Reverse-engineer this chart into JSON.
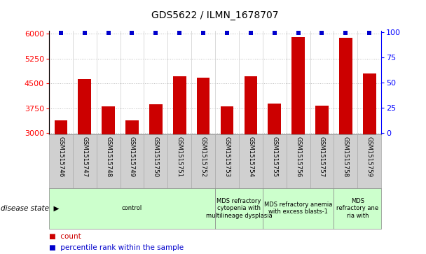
{
  "title": "GDS5622 / ILMN_1678707",
  "samples": [
    "GSM1515746",
    "GSM1515747",
    "GSM1515748",
    "GSM1515749",
    "GSM1515750",
    "GSM1515751",
    "GSM1515752",
    "GSM1515753",
    "GSM1515754",
    "GSM1515755",
    "GSM1515756",
    "GSM1515757",
    "GSM1515758",
    "GSM1515759"
  ],
  "counts": [
    3380,
    4620,
    3800,
    3380,
    3870,
    4720,
    4680,
    3800,
    4720,
    3900,
    5900,
    3820,
    5880,
    4800
  ],
  "bar_color": "#cc0000",
  "dot_color": "#0000cc",
  "dot_color2": "#3333cc",
  "ylim_left": [
    2950,
    6100
  ],
  "ylim_right": [
    -2,
    102
  ],
  "yticks_left": [
    3000,
    3750,
    4500,
    5250,
    6000
  ],
  "yticks_right": [
    0,
    25,
    50,
    75,
    100
  ],
  "grid_color": "#bbbbbb",
  "groups": [
    {
      "label": "control",
      "start": 0,
      "end": 7
    },
    {
      "label": "MDS refractory\ncytopenia with\nmultilineage dysplasia",
      "start": 7,
      "end": 9
    },
    {
      "label": "MDS refractory anemia\nwith excess blasts-1",
      "start": 9,
      "end": 12
    },
    {
      "label": "MDS\nrefractory ane\nria with",
      "start": 12,
      "end": 14
    }
  ],
  "group_color": "#ccffcc",
  "group_edge_color": "#888888",
  "sample_box_color": "#d0d0d0",
  "sample_box_edge": "#aaaaaa",
  "title_fontsize": 10,
  "tick_fontsize": 8,
  "label_fontsize": 7,
  "bar_width": 0.55,
  "disease_label": "disease state",
  "legend_count": "count",
  "legend_pct": "percentile rank within the sample"
}
